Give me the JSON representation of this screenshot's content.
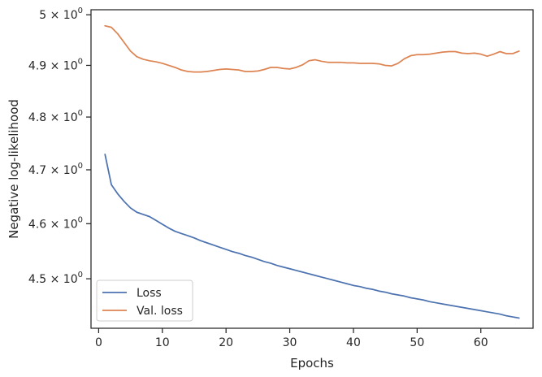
{
  "chart_data": {
    "type": "line",
    "xlabel": "Epochs",
    "ylabel": "Negative log-likelihood",
    "xlim": [
      -1.2,
      68.2
    ],
    "ylim": [
      4.412,
      5.01
    ],
    "y_scale": "log",
    "grid": false,
    "legend_position": "lower-left",
    "x_ticks": [
      0,
      10,
      20,
      30,
      40,
      50,
      60
    ],
    "y_ticks": [
      {
        "value": 4.5,
        "mantissa": "4.5",
        "exponent": "0"
      },
      {
        "value": 4.6,
        "mantissa": "4.6",
        "exponent": "0"
      },
      {
        "value": 4.7,
        "mantissa": "4.7",
        "exponent": "0"
      },
      {
        "value": 4.8,
        "mantissa": "4.8",
        "exponent": "0"
      },
      {
        "value": 4.9,
        "mantissa": "4.9",
        "exponent": "0"
      },
      {
        "value": 5.0,
        "mantissa": "5",
        "exponent": "0"
      }
    ],
    "times_symbol": "×",
    "base_text": "10",
    "x": [
      1,
      2,
      3,
      4,
      5,
      6,
      7,
      8,
      9,
      10,
      11,
      12,
      13,
      14,
      15,
      16,
      17,
      18,
      19,
      20,
      21,
      22,
      23,
      24,
      25,
      26,
      27,
      28,
      29,
      30,
      31,
      32,
      33,
      34,
      35,
      36,
      37,
      38,
      39,
      40,
      41,
      42,
      43,
      44,
      45,
      46,
      47,
      48,
      49,
      50,
      51,
      52,
      53,
      54,
      55,
      56,
      57,
      58,
      59,
      60,
      61,
      62,
      63,
      64,
      65,
      66
    ],
    "series": [
      {
        "name": "Loss",
        "color": "#4c72b0",
        "values": [
          4.729,
          4.672,
          4.655,
          4.641,
          4.629,
          4.621,
          4.617,
          4.613,
          4.606,
          4.599,
          4.592,
          4.586,
          4.582,
          4.578,
          4.574,
          4.569,
          4.565,
          4.561,
          4.557,
          4.553,
          4.549,
          4.546,
          4.542,
          4.539,
          4.535,
          4.531,
          4.528,
          4.524,
          4.521,
          4.518,
          4.515,
          4.512,
          4.509,
          4.506,
          4.503,
          4.5,
          4.497,
          4.494,
          4.491,
          4.488,
          4.486,
          4.483,
          4.481,
          4.478,
          4.476,
          4.473,
          4.471,
          4.469,
          4.466,
          4.464,
          4.462,
          4.459,
          4.457,
          4.455,
          4.453,
          4.451,
          4.449,
          4.447,
          4.445,
          4.443,
          4.441,
          4.439,
          4.437,
          4.434,
          4.432,
          4.43
        ]
      },
      {
        "name": "Val. loss",
        "color": "#dd8452",
        "values": [
          4.978,
          4.975,
          4.962,
          4.945,
          4.928,
          4.917,
          4.912,
          4.909,
          4.907,
          4.904,
          4.9,
          4.896,
          4.891,
          4.888,
          4.887,
          4.887,
          4.888,
          4.89,
          4.892,
          4.893,
          4.892,
          4.891,
          4.888,
          4.888,
          4.889,
          4.892,
          4.896,
          4.896,
          4.894,
          4.893,
          4.896,
          4.901,
          4.909,
          4.911,
          4.908,
          4.906,
          4.906,
          4.906,
          4.905,
          4.905,
          4.904,
          4.904,
          4.904,
          4.903,
          4.9,
          4.899,
          4.904,
          4.913,
          4.919,
          4.921,
          4.921,
          4.922,
          4.924,
          4.926,
          4.927,
          4.927,
          4.924,
          4.923,
          4.924,
          4.922,
          4.918,
          4.922,
          4.927,
          4.923,
          4.923,
          4.928
        ]
      }
    ]
  }
}
